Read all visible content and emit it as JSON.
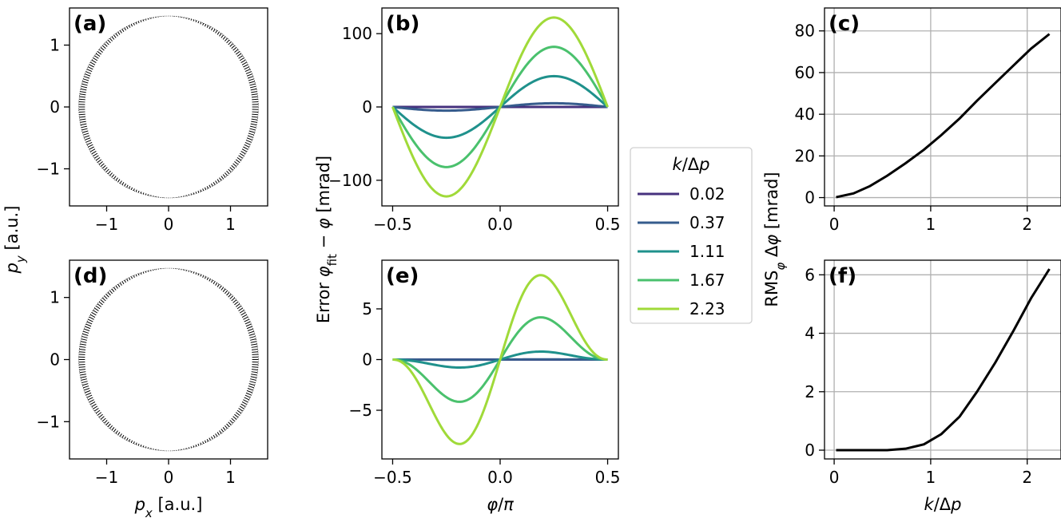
{
  "figure": {
    "shared_labels": {
      "col1_ylabel": "p_y [a.u.]",
      "col1_xlabel": "p_x [a.u.]",
      "col2_ylabel": "Error φ_fit − φ [mrad]",
      "col2_xlabel": "φ/π",
      "col3_ylabel": "RMS_φ  Δφ  [mrad]",
      "col3_xlabel": "k/Δp"
    },
    "legend": {
      "title": "k/Δp",
      "placement": "center-right",
      "entries": [
        "0.02",
        "0.37",
        "1.11",
        "1.67",
        "2.23"
      ],
      "colors": [
        "#46327e",
        "#365c8d",
        "#1f918c",
        "#4ac16d",
        "#a0da39"
      ]
    }
  },
  "chart_data": [
    {
      "panel": "(a)",
      "type": "scatter",
      "description_series": "ellipse of momentum points with small radial error ticks",
      "x_ticks": [
        "−1",
        "0",
        "1"
      ],
      "y_ticks": [
        "−1",
        "0",
        "1"
      ],
      "xlim": [
        -1.6,
        1.6
      ],
      "ylim": [
        -1.6,
        1.6
      ],
      "ellipse": {
        "a": 1.45,
        "b": 1.47
      },
      "tick_scale": 0.1
    },
    {
      "panel": "(b)",
      "type": "line",
      "x_ticks": [
        "−0.5",
        "0.0",
        "0.5"
      ],
      "y_ticks": [
        "−100",
        "0",
        "100"
      ],
      "xlim": [
        -0.55,
        0.55
      ],
      "ylim": [
        -135,
        135
      ],
      "series": [
        {
          "name": "0.02",
          "amplitude": 0.02
        },
        {
          "name": "0.37",
          "amplitude": 5
        },
        {
          "name": "1.11",
          "amplitude": 42
        },
        {
          "name": "1.67",
          "amplitude": 82
        },
        {
          "name": "2.23",
          "amplitude": 122
        }
      ]
    },
    {
      "panel": "(c)",
      "type": "line",
      "x_ticks": [
        "0",
        "1",
        "2"
      ],
      "y_ticks": [
        "0",
        "20",
        "40",
        "60",
        "80"
      ],
      "xlim": [
        -0.1,
        2.35
      ],
      "ylim": [
        -4,
        91
      ],
      "grid": true,
      "x": [
        0.02,
        0.2,
        0.37,
        0.55,
        0.74,
        0.93,
        1.11,
        1.3,
        1.48,
        1.67,
        1.86,
        2.04,
        2.23
      ],
      "y": [
        0.2,
        2,
        5.5,
        10.5,
        16.5,
        23,
        30,
        38,
        46.5,
        55,
        63.5,
        71.5,
        78.5
      ]
    },
    {
      "panel": "(d)",
      "type": "scatter",
      "x_ticks": [
        "−1",
        "0",
        "1"
      ],
      "y_ticks": [
        "−1",
        "0",
        "1"
      ],
      "xlim": [
        -1.6,
        1.6
      ],
      "ylim": [
        -1.6,
        1.6
      ],
      "ellipse": {
        "a": 1.45,
        "b": 1.47
      },
      "tick_scale": 0.1
    },
    {
      "panel": "(e)",
      "type": "line",
      "x_ticks": [
        "−0.5",
        "0.0",
        "0.5"
      ],
      "y_ticks": [
        "−5",
        "0",
        "5"
      ],
      "xlim": [
        -0.55,
        0.55
      ],
      "ylim": [
        -9.8,
        9.8
      ],
      "series": [
        {
          "name": "0.02",
          "amplitude": 0.0
        },
        {
          "name": "0.37",
          "amplitude": 0.02
        },
        {
          "name": "1.11",
          "amplitude": 0.85
        },
        {
          "name": "1.67",
          "amplitude": 4.5
        },
        {
          "name": "2.23",
          "amplitude": 9.0
        }
      ]
    },
    {
      "panel": "(f)",
      "type": "line",
      "x_ticks": [
        "0",
        "1",
        "2"
      ],
      "y_ticks": [
        "0",
        "2",
        "4",
        "6"
      ],
      "xlim": [
        -0.1,
        2.35
      ],
      "ylim": [
        -0.3,
        6.5
      ],
      "grid": true,
      "x": [
        0.02,
        0.2,
        0.37,
        0.55,
        0.74,
        0.93,
        1.11,
        1.3,
        1.48,
        1.67,
        1.86,
        2.04,
        2.23
      ],
      "y": [
        0.0,
        0.0,
        0.0,
        0.0,
        0.05,
        0.2,
        0.55,
        1.15,
        2.0,
        3.0,
        4.1,
        5.2,
        6.2
      ]
    }
  ]
}
